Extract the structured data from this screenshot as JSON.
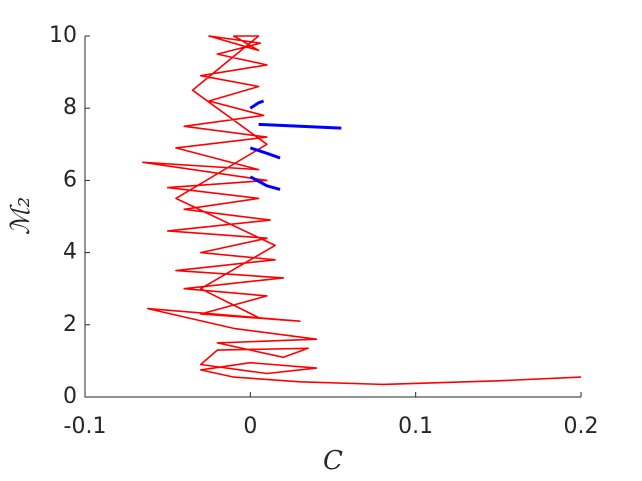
{
  "chart_data": {
    "type": "line",
    "xlabel": "C",
    "ylabel": "ℳ₂",
    "xlim": [
      -0.1,
      0.2
    ],
    "xticks": [
      -0.1,
      0,
      0.1,
      0.2
    ],
    "ylim": [
      0,
      10
    ],
    "yticks": [
      0,
      2,
      4,
      6,
      8,
      10
    ],
    "grid": false,
    "series": [
      {
        "color": "#ff0000",
        "x": [
          0.2,
          0.15,
          0.08,
          0.03,
          -0.01,
          -0.03,
          0.0,
          0.04,
          0.01,
          -0.03,
          -0.02,
          0.035,
          0.02,
          -0.02,
          0.04,
          -0.01,
          -0.062,
          0.03,
          -0.03,
          0.01,
          -0.04,
          0.02,
          -0.045,
          0.015,
          -0.03,
          0.01,
          -0.05,
          0.012,
          -0.04,
          0.005,
          -0.05,
          0.01,
          -0.065,
          0.005,
          -0.045,
          0.01,
          -0.04,
          0.008,
          -0.025,
          0.005,
          -0.03,
          0.01,
          -0.02,
          0.006,
          -0.025,
          0.005,
          -0.01,
          0.005,
          -0.035,
          0.01,
          -0.045,
          0.015,
          -0.03,
          0.005
        ],
        "values": [
          0.55,
          0.45,
          0.35,
          0.42,
          0.55,
          0.75,
          0.95,
          0.8,
          0.65,
          0.9,
          1.3,
          1.35,
          1.1,
          1.5,
          1.6,
          1.9,
          2.45,
          2.1,
          2.3,
          2.8,
          3.0,
          3.3,
          3.5,
          3.8,
          4.0,
          4.4,
          4.6,
          4.9,
          5.2,
          5.5,
          5.8,
          6.0,
          6.5,
          6.3,
          6.9,
          7.2,
          7.5,
          7.8,
          8.2,
          8.6,
          8.9,
          9.2,
          9.5,
          9.8,
          10,
          9.6,
          10,
          10,
          8.5,
          7.0,
          5.5,
          4.2,
          3.0,
          2.2
        ]
      },
      {
        "color": "#0000ff",
        "x": [
          0.0,
          0.005,
          0.008,
          null,
          0.005,
          0.03,
          0.055,
          null,
          0.0,
          0.01,
          0.018,
          null,
          0.0,
          0.01,
          0.018
        ],
        "values": [
          8.0,
          8.15,
          8.2,
          null,
          7.55,
          7.5,
          7.45,
          null,
          6.9,
          6.75,
          6.62,
          null,
          6.1,
          5.85,
          5.75
        ]
      }
    ]
  }
}
